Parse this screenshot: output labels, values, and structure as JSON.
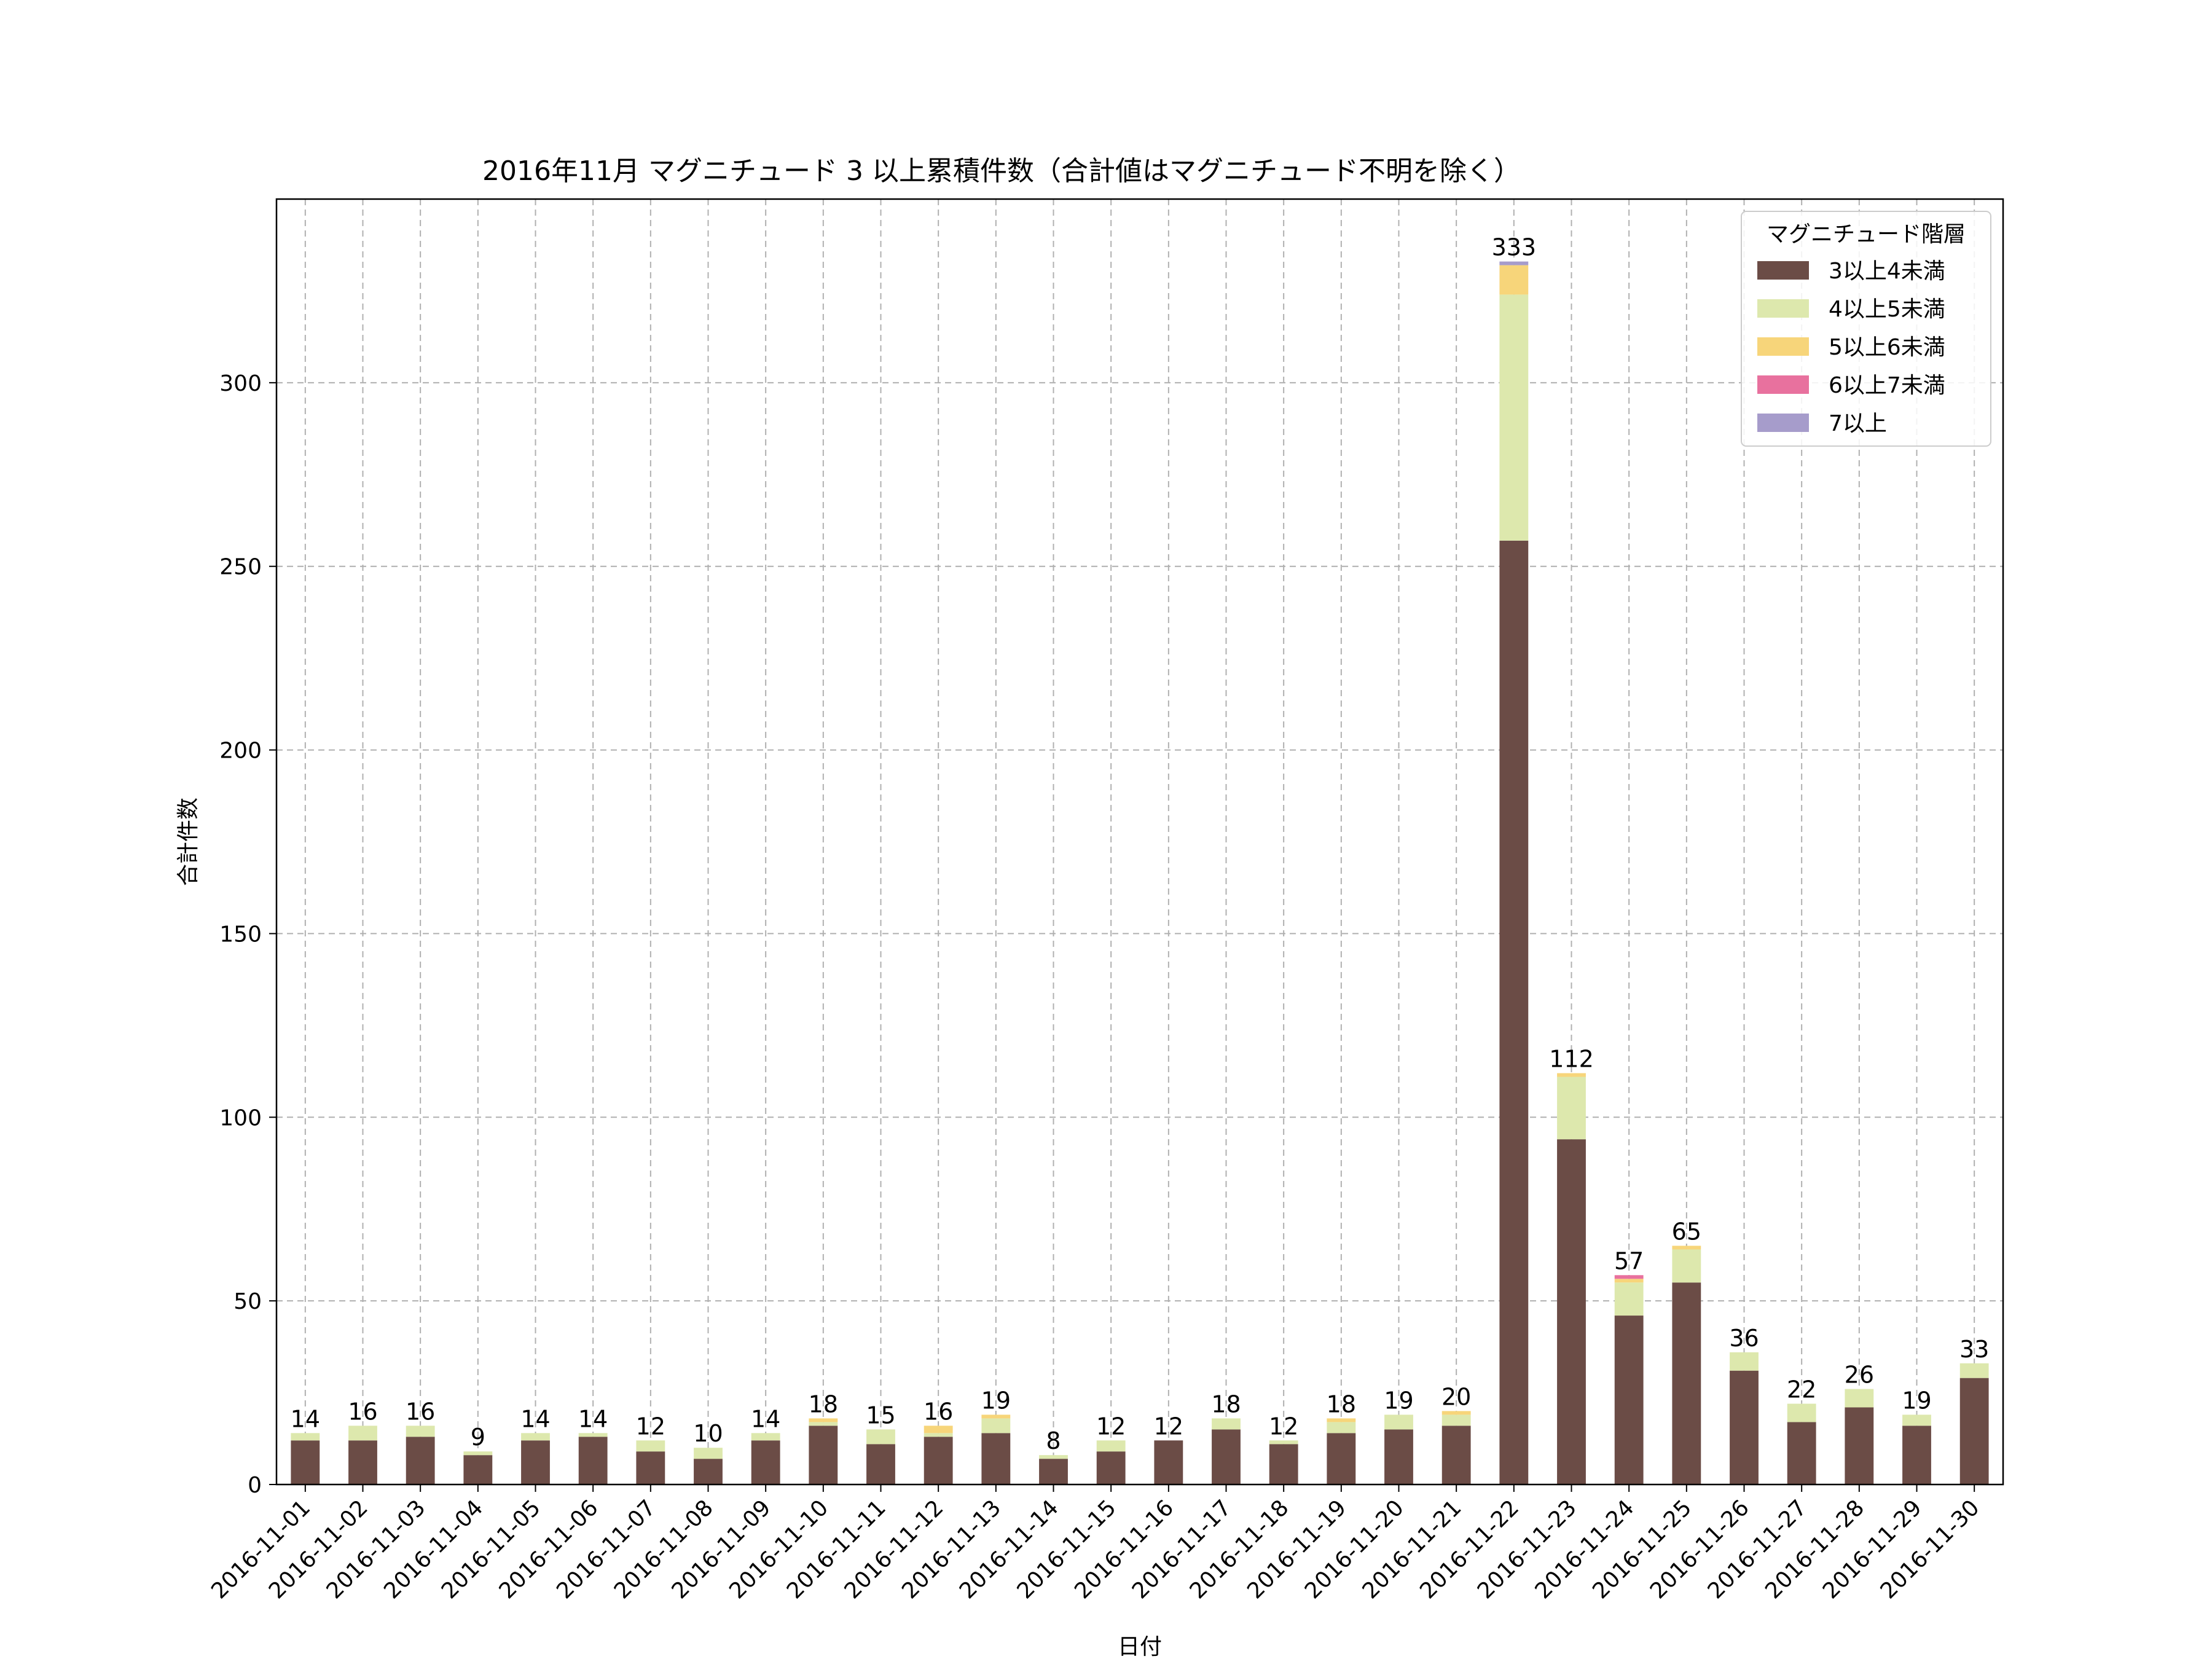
{
  "chart_data": {
    "type": "bar",
    "stacked": true,
    "title": "2016年11月 マグニチュード 3 以上累積件数（合計値はマグニチュード不明を除く）",
    "xlabel": "日付",
    "ylabel": "合計件数",
    "ylim": [
      0,
      350
    ],
    "yticks": [
      0,
      50,
      100,
      150,
      200,
      250,
      300
    ],
    "grid": true,
    "legend_title": "マグニチュード階層",
    "legend_position": "top-right",
    "categories": [
      "2016-11-01",
      "2016-11-02",
      "2016-11-03",
      "2016-11-04",
      "2016-11-05",
      "2016-11-06",
      "2016-11-07",
      "2016-11-08",
      "2016-11-09",
      "2016-11-10",
      "2016-11-11",
      "2016-11-12",
      "2016-11-13",
      "2016-11-14",
      "2016-11-15",
      "2016-11-16",
      "2016-11-17",
      "2016-11-18",
      "2016-11-19",
      "2016-11-20",
      "2016-11-21",
      "2016-11-22",
      "2016-11-23",
      "2016-11-24",
      "2016-11-25",
      "2016-11-26",
      "2016-11-27",
      "2016-11-28",
      "2016-11-29",
      "2016-11-30"
    ],
    "series": [
      {
        "name": "3以上4未満",
        "color": "#6b4c46",
        "values": [
          12,
          12,
          13,
          8,
          12,
          13,
          9,
          7,
          12,
          16,
          11,
          13,
          14,
          7,
          9,
          12,
          15,
          11,
          14,
          15,
          16,
          257,
          94,
          46,
          55,
          31,
          17,
          21,
          16,
          29
        ]
      },
      {
        "name": "4以上5未満",
        "color": "#dde8ad",
        "values": [
          2,
          4,
          3,
          1,
          2,
          1,
          3,
          3,
          2,
          1,
          4,
          1,
          4,
          1,
          3,
          0,
          3,
          1,
          3,
          4,
          3,
          67,
          17,
          9,
          9,
          5,
          5,
          5,
          3,
          4
        ]
      },
      {
        "name": "5以上6未満",
        "color": "#f7d57a",
        "values": [
          0,
          0,
          0,
          0,
          0,
          0,
          0,
          0,
          0,
          1,
          0,
          2,
          1,
          0,
          0,
          0,
          0,
          0,
          1,
          0,
          1,
          8,
          1,
          1,
          1,
          0,
          0,
          0,
          0,
          0
        ]
      },
      {
        "name": "6以上7未満",
        "color": "#e8719e",
        "values": [
          0,
          0,
          0,
          0,
          0,
          0,
          0,
          0,
          0,
          0,
          0,
          0,
          0,
          0,
          0,
          0,
          0,
          0,
          0,
          0,
          0,
          0,
          0,
          1,
          0,
          0,
          0,
          0,
          0,
          0
        ]
      },
      {
        "name": "7以上",
        "color": "#a69ccb",
        "values": [
          0,
          0,
          0,
          0,
          0,
          0,
          0,
          0,
          0,
          0,
          0,
          0,
          0,
          0,
          0,
          0,
          0,
          0,
          0,
          0,
          0,
          1,
          0,
          0,
          0,
          0,
          0,
          0,
          0,
          0
        ]
      }
    ],
    "totals": [
      14,
      16,
      16,
      9,
      14,
      14,
      12,
      10,
      14,
      18,
      15,
      16,
      19,
      8,
      12,
      12,
      18,
      12,
      18,
      19,
      20,
      333,
      112,
      57,
      65,
      36,
      22,
      26,
      19,
      33
    ]
  }
}
